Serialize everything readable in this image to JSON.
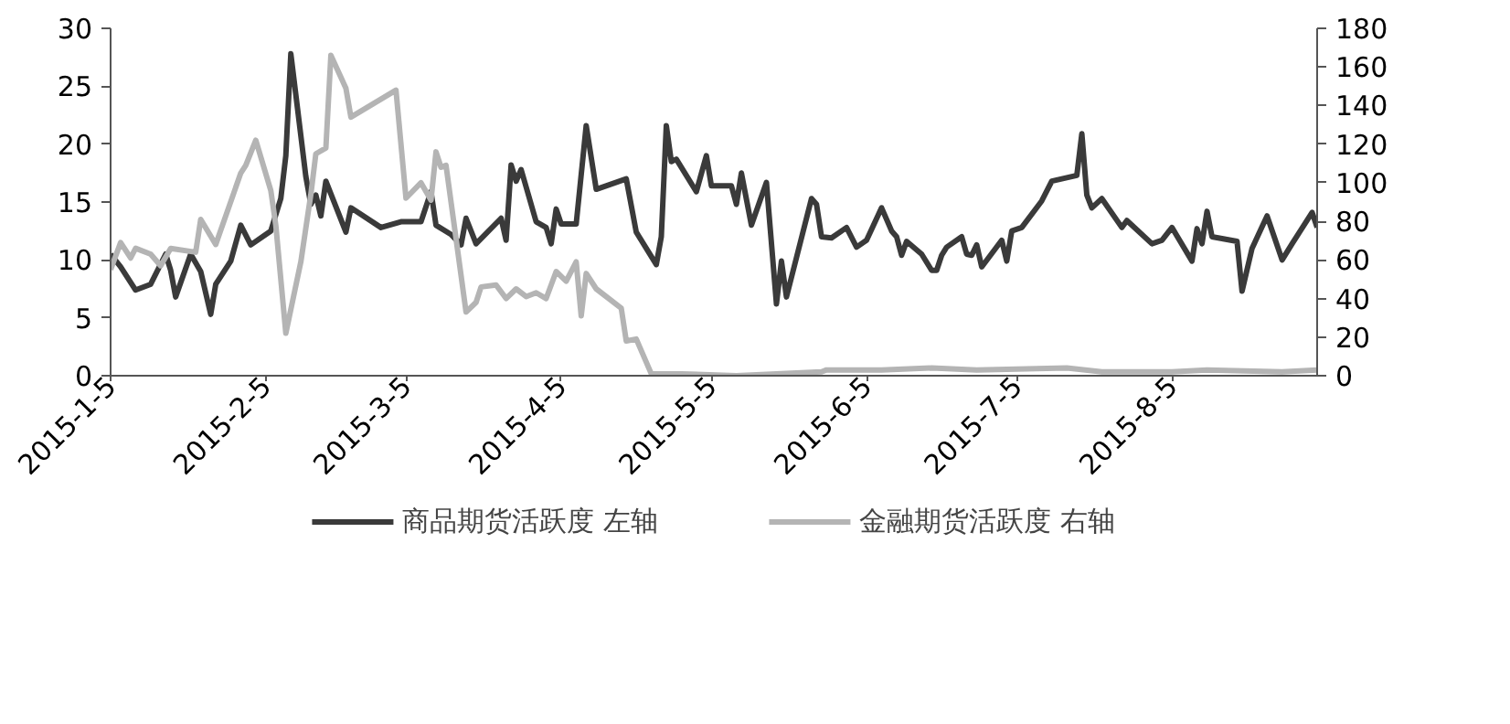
{
  "chart_data": {
    "type": "line",
    "legend": "bottom",
    "grid": false,
    "marker": "none",
    "line_style": "solid",
    "xlim": [
      "2015-01-05",
      "2015-09-03"
    ],
    "xticks": [
      {
        "value": "2015-01-05",
        "label": "2015-1-5"
      },
      {
        "value": "2015-02-05",
        "label": "2015-2-5"
      },
      {
        "value": "2015-03-05",
        "label": "2015-3-5"
      },
      {
        "value": "2015-04-05",
        "label": "2015-4-5"
      },
      {
        "value": "2015-05-05",
        "label": "2015-5-5"
      },
      {
        "value": "2015-06-05",
        "label": "2015-6-5"
      },
      {
        "value": "2015-07-05",
        "label": "2015-7-5"
      },
      {
        "value": "2015-08-05",
        "label": "2015-8-5"
      }
    ],
    "ylim": [
      0,
      30
    ],
    "yticks": [
      0,
      5,
      10,
      15,
      20,
      25,
      30
    ],
    "y2lim": [
      0,
      180
    ],
    "y2ticks": [
      0,
      20,
      40,
      60,
      80,
      100,
      120,
      140,
      160,
      180
    ],
    "series": [
      {
        "name": "商品期货活跃度 左轴",
        "color": "#3a3a3a",
        "x": [
          "2015-01-05",
          "2015-01-07",
          "2015-01-10",
          "2015-01-13",
          "2015-01-16",
          "2015-01-17",
          "2015-01-18",
          "2015-01-21",
          "2015-01-23",
          "2015-01-25",
          "2015-01-26",
          "2015-01-29",
          "2015-01-31",
          "2015-02-02",
          "2015-02-06",
          "2015-02-08",
          "2015-02-09",
          "2015-02-10",
          "2015-02-13",
          "2015-02-14",
          "2015-02-15",
          "2015-02-16",
          "2015-02-17",
          "2015-02-21",
          "2015-02-22",
          "2015-02-28",
          "2015-03-04",
          "2015-03-08",
          "2015-03-10",
          "2015-03-11",
          "2015-03-14",
          "2015-03-16",
          "2015-03-17",
          "2015-03-19",
          "2015-03-24",
          "2015-03-25",
          "2015-03-26",
          "2015-03-27",
          "2015-03-28",
          "2015-03-31",
          "2015-04-02",
          "2015-04-03",
          "2015-04-04",
          "2015-04-05",
          "2015-04-08",
          "2015-04-10",
          "2015-04-12",
          "2015-04-18",
          "2015-04-20",
          "2015-04-24",
          "2015-04-25",
          "2015-04-26",
          "2015-04-27",
          "2015-04-28",
          "2015-05-02",
          "2015-05-04",
          "2015-05-05",
          "2015-05-09",
          "2015-05-10",
          "2015-05-11",
          "2015-05-13",
          "2015-05-16",
          "2015-05-18",
          "2015-05-19",
          "2015-05-20",
          "2015-05-25",
          "2015-05-26",
          "2015-05-27",
          "2015-05-29",
          "2015-06-01",
          "2015-06-03",
          "2015-06-05",
          "2015-06-08",
          "2015-06-10",
          "2015-06-11",
          "2015-06-12",
          "2015-06-13",
          "2015-06-16",
          "2015-06-18",
          "2015-06-19",
          "2015-06-20",
          "2015-06-21",
          "2015-06-24",
          "2015-06-25",
          "2015-06-26",
          "2015-06-27",
          "2015-06-28",
          "2015-07-02",
          "2015-07-03",
          "2015-07-04",
          "2015-07-06",
          "2015-07-10",
          "2015-07-12",
          "2015-07-17",
          "2015-07-18",
          "2015-07-19",
          "2015-07-20",
          "2015-07-22",
          "2015-07-26",
          "2015-07-27",
          "2015-08-01",
          "2015-08-03",
          "2015-08-05",
          "2015-08-09",
          "2015-08-10",
          "2015-08-11",
          "2015-08-12",
          "2015-08-13",
          "2015-08-18",
          "2015-08-19",
          "2015-08-21",
          "2015-08-24",
          "2015-08-27",
          "2015-08-29",
          "2015-09-02",
          "2015-09-03"
        ],
        "values": [
          10.5,
          9.4,
          7.4,
          7.9,
          10.5,
          9.1,
          6.8,
          10.5,
          9.0,
          5.3,
          7.9,
          9.9,
          13.0,
          11.3,
          12.5,
          15.3,
          19.0,
          27.8,
          17.2,
          14.8,
          15.6,
          13.8,
          16.8,
          12.4,
          14.5,
          12.8,
          13.3,
          13.3,
          15.9,
          13.0,
          12.2,
          11.3,
          13.6,
          11.4,
          13.6,
          11.7,
          18.2,
          16.8,
          17.8,
          13.3,
          12.8,
          11.4,
          14.4,
          13.1,
          13.1,
          21.6,
          16.1,
          17.0,
          12.4,
          9.6,
          12.0,
          21.6,
          18.5,
          18.7,
          15.9,
          19.0,
          16.4,
          16.4,
          14.8,
          17.5,
          13.0,
          16.7,
          6.2,
          9.9,
          6.8,
          15.3,
          14.8,
          12.0,
          11.9,
          12.8,
          11.1,
          11.7,
          14.5,
          12.5,
          12.0,
          10.4,
          11.6,
          10.5,
          9.1,
          9.1,
          10.4,
          11.1,
          12.0,
          10.5,
          10.4,
          11.3,
          9.4,
          11.7,
          9.9,
          12.5,
          12.8,
          15.1,
          16.8,
          17.3,
          20.9,
          15.6,
          14.5,
          15.3,
          12.8,
          13.4,
          11.4,
          11.7,
          12.8,
          9.9,
          12.7,
          11.4,
          14.2,
          12.0,
          11.6,
          7.3,
          11.0,
          13.8,
          10.0,
          11.4,
          14.1,
          12.8
        ]
      },
      {
        "name": "金融期货活跃度 右轴",
        "color": "#b4b4b4",
        "axis": "y2",
        "x": [
          "2015-01-05",
          "2015-01-07",
          "2015-01-09",
          "2015-01-10",
          "2015-01-13",
          "2015-01-15",
          "2015-01-17",
          "2015-01-22",
          "2015-01-23",
          "2015-01-26",
          "2015-01-31",
          "2015-02-01",
          "2015-02-03",
          "2015-02-06",
          "2015-02-07",
          "2015-02-09",
          "2015-02-12",
          "2015-02-14",
          "2015-02-15",
          "2015-02-17",
          "2015-02-18",
          "2015-02-21",
          "2015-02-22",
          "2015-03-03",
          "2015-03-05",
          "2015-03-08",
          "2015-03-10",
          "2015-03-11",
          "2015-03-12",
          "2015-03-13",
          "2015-03-17",
          "2015-03-19",
          "2015-03-20",
          "2015-03-23",
          "2015-03-25",
          "2015-03-27",
          "2015-03-29",
          "2015-03-31",
          "2015-04-02",
          "2015-04-04",
          "2015-04-06",
          "2015-04-08",
          "2015-04-09",
          "2015-04-10",
          "2015-04-12",
          "2015-04-17",
          "2015-04-18",
          "2015-04-20",
          "2015-04-23",
          "2015-04-29",
          "2015-05-10",
          "2015-05-27",
          "2015-05-28",
          "2015-06-08",
          "2015-06-18",
          "2015-06-27",
          "2015-07-15",
          "2015-07-22",
          "2015-08-05",
          "2015-08-12",
          "2015-08-27",
          "2015-09-03"
        ],
        "values": [
          55,
          69,
          61,
          66,
          63,
          57,
          66,
          64,
          81,
          68,
          105,
          109,
          122,
          96,
          78,
          22,
          59,
          94,
          115,
          118,
          166,
          149,
          134,
          148,
          92,
          100,
          91,
          116,
          108,
          109,
          33,
          38,
          46,
          47,
          40,
          45,
          41,
          43,
          40,
          54,
          49,
          59,
          31,
          53,
          45,
          35,
          18,
          19,
          1,
          1,
          0,
          2,
          3,
          3,
          4,
          3,
          4,
          2,
          2,
          3,
          2,
          3
        ]
      }
    ]
  }
}
